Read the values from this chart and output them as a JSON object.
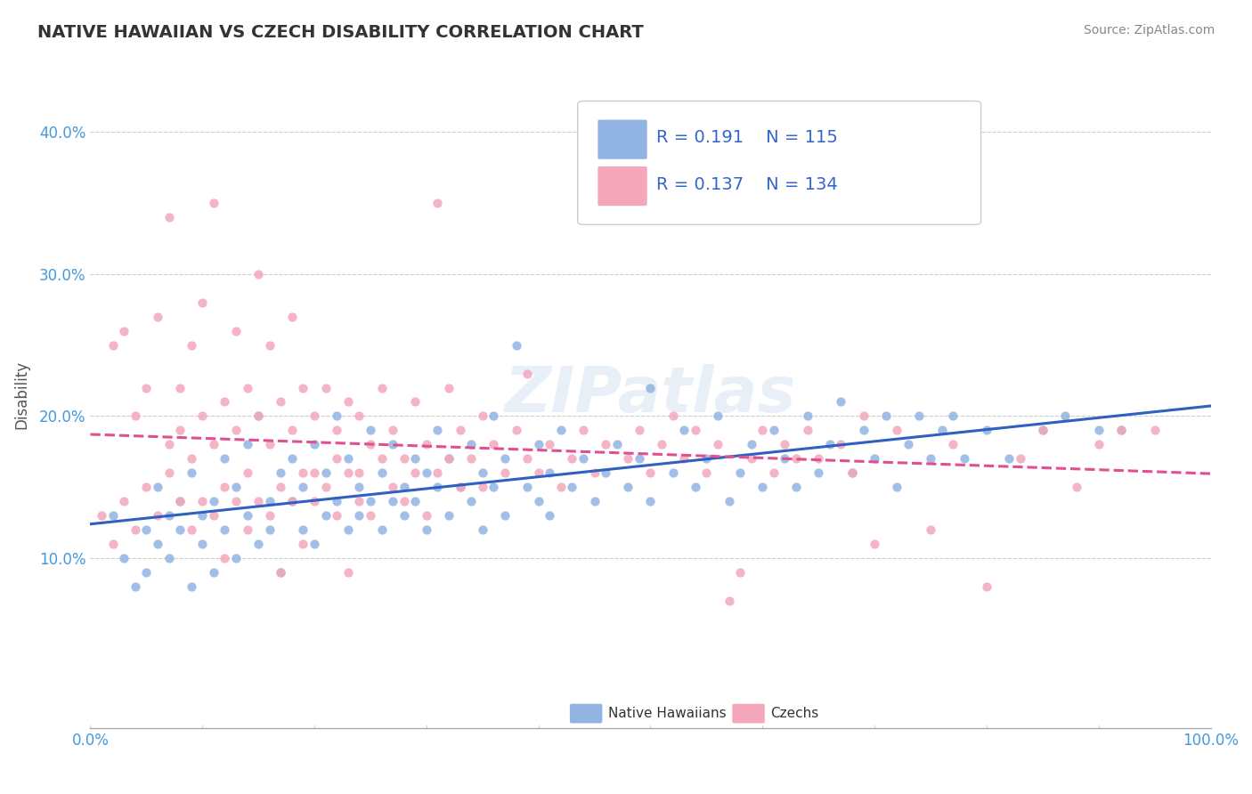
{
  "title": "NATIVE HAWAIIAN VS CZECH DISABILITY CORRELATION CHART",
  "source": "Source: ZipAtlas.com",
  "ylabel": "Disability",
  "xlim": [
    0.0,
    1.0
  ],
  "ylim": [
    -0.02,
    0.45
  ],
  "yticks": [
    0.0,
    0.1,
    0.2,
    0.3,
    0.4
  ],
  "ytick_labels": [
    "",
    "10.0%",
    "20.0%",
    "30.0%",
    "40.0%"
  ],
  "xtick_labels": [
    "0.0%",
    "100.0%"
  ],
  "blue_color": "#92b4e3",
  "pink_color": "#f4a7bb",
  "blue_line_color": "#3060c0",
  "pink_line_color": "#e05090",
  "tick_color": "#4499dd",
  "legend_text_color": "#3366cc",
  "legend_blue_r": "0.191",
  "legend_blue_n": "115",
  "legend_pink_r": "0.137",
  "legend_pink_n": "134",
  "watermark": "ZIPatlas",
  "watermark_color": "#ccddee",
  "blue_scatter": [
    [
      0.02,
      0.13
    ],
    [
      0.03,
      0.1
    ],
    [
      0.04,
      0.08
    ],
    [
      0.05,
      0.12
    ],
    [
      0.05,
      0.09
    ],
    [
      0.06,
      0.11
    ],
    [
      0.06,
      0.15
    ],
    [
      0.07,
      0.13
    ],
    [
      0.07,
      0.1
    ],
    [
      0.08,
      0.14
    ],
    [
      0.08,
      0.12
    ],
    [
      0.09,
      0.08
    ],
    [
      0.09,
      0.16
    ],
    [
      0.1,
      0.13
    ],
    [
      0.1,
      0.11
    ],
    [
      0.11,
      0.14
    ],
    [
      0.11,
      0.09
    ],
    [
      0.12,
      0.17
    ],
    [
      0.12,
      0.12
    ],
    [
      0.13,
      0.1
    ],
    [
      0.13,
      0.15
    ],
    [
      0.14,
      0.18
    ],
    [
      0.14,
      0.13
    ],
    [
      0.15,
      0.11
    ],
    [
      0.15,
      0.2
    ],
    [
      0.16,
      0.14
    ],
    [
      0.16,
      0.12
    ],
    [
      0.17,
      0.16
    ],
    [
      0.17,
      0.09
    ],
    [
      0.18,
      0.17
    ],
    [
      0.18,
      0.14
    ],
    [
      0.19,
      0.12
    ],
    [
      0.19,
      0.15
    ],
    [
      0.2,
      0.18
    ],
    [
      0.2,
      0.11
    ],
    [
      0.21,
      0.16
    ],
    [
      0.21,
      0.13
    ],
    [
      0.22,
      0.2
    ],
    [
      0.22,
      0.14
    ],
    [
      0.23,
      0.12
    ],
    [
      0.23,
      0.17
    ],
    [
      0.24,
      0.15
    ],
    [
      0.24,
      0.13
    ],
    [
      0.25,
      0.19
    ],
    [
      0.25,
      0.14
    ],
    [
      0.26,
      0.12
    ],
    [
      0.26,
      0.16
    ],
    [
      0.27,
      0.14
    ],
    [
      0.27,
      0.18
    ],
    [
      0.28,
      0.15
    ],
    [
      0.28,
      0.13
    ],
    [
      0.29,
      0.17
    ],
    [
      0.29,
      0.14
    ],
    [
      0.3,
      0.16
    ],
    [
      0.3,
      0.12
    ],
    [
      0.31,
      0.19
    ],
    [
      0.31,
      0.15
    ],
    [
      0.32,
      0.13
    ],
    [
      0.32,
      0.17
    ],
    [
      0.33,
      0.15
    ],
    [
      0.34,
      0.18
    ],
    [
      0.34,
      0.14
    ],
    [
      0.35,
      0.16
    ],
    [
      0.35,
      0.12
    ],
    [
      0.36,
      0.2
    ],
    [
      0.36,
      0.15
    ],
    [
      0.37,
      0.13
    ],
    [
      0.37,
      0.17
    ],
    [
      0.38,
      0.25
    ],
    [
      0.39,
      0.15
    ],
    [
      0.4,
      0.18
    ],
    [
      0.4,
      0.14
    ],
    [
      0.41,
      0.16
    ],
    [
      0.41,
      0.13
    ],
    [
      0.42,
      0.19
    ],
    [
      0.43,
      0.15
    ],
    [
      0.44,
      0.17
    ],
    [
      0.45,
      0.14
    ],
    [
      0.46,
      0.16
    ],
    [
      0.47,
      0.18
    ],
    [
      0.48,
      0.15
    ],
    [
      0.49,
      0.17
    ],
    [
      0.5,
      0.22
    ],
    [
      0.5,
      0.14
    ],
    [
      0.52,
      0.16
    ],
    [
      0.53,
      0.19
    ],
    [
      0.54,
      0.15
    ],
    [
      0.55,
      0.17
    ],
    [
      0.56,
      0.2
    ],
    [
      0.57,
      0.14
    ],
    [
      0.58,
      0.16
    ],
    [
      0.59,
      0.18
    ],
    [
      0.6,
      0.15
    ],
    [
      0.61,
      0.19
    ],
    [
      0.62,
      0.17
    ],
    [
      0.63,
      0.15
    ],
    [
      0.64,
      0.2
    ],
    [
      0.65,
      0.16
    ],
    [
      0.66,
      0.18
    ],
    [
      0.67,
      0.21
    ],
    [
      0.68,
      0.16
    ],
    [
      0.69,
      0.19
    ],
    [
      0.7,
      0.17
    ],
    [
      0.71,
      0.2
    ],
    [
      0.72,
      0.15
    ],
    [
      0.73,
      0.18
    ],
    [
      0.74,
      0.2
    ],
    [
      0.75,
      0.17
    ],
    [
      0.76,
      0.19
    ],
    [
      0.77,
      0.2
    ],
    [
      0.78,
      0.17
    ],
    [
      0.8,
      0.19
    ],
    [
      0.82,
      0.17
    ],
    [
      0.85,
      0.19
    ],
    [
      0.87,
      0.2
    ],
    [
      0.9,
      0.19
    ],
    [
      0.92,
      0.19
    ]
  ],
  "pink_scatter": [
    [
      0.01,
      0.13
    ],
    [
      0.02,
      0.11
    ],
    [
      0.02,
      0.25
    ],
    [
      0.03,
      0.14
    ],
    [
      0.03,
      0.26
    ],
    [
      0.04,
      0.12
    ],
    [
      0.04,
      0.2
    ],
    [
      0.05,
      0.15
    ],
    [
      0.05,
      0.22
    ],
    [
      0.06,
      0.13
    ],
    [
      0.06,
      0.27
    ],
    [
      0.07,
      0.16
    ],
    [
      0.07,
      0.18
    ],
    [
      0.07,
      0.34
    ],
    [
      0.08,
      0.14
    ],
    [
      0.08,
      0.19
    ],
    [
      0.08,
      0.22
    ],
    [
      0.09,
      0.12
    ],
    [
      0.09,
      0.17
    ],
    [
      0.09,
      0.25
    ],
    [
      0.1,
      0.14
    ],
    [
      0.1,
      0.2
    ],
    [
      0.1,
      0.28
    ],
    [
      0.11,
      0.13
    ],
    [
      0.11,
      0.18
    ],
    [
      0.11,
      0.35
    ],
    [
      0.12,
      0.15
    ],
    [
      0.12,
      0.21
    ],
    [
      0.12,
      0.1
    ],
    [
      0.13,
      0.14
    ],
    [
      0.13,
      0.19
    ],
    [
      0.13,
      0.26
    ],
    [
      0.14,
      0.16
    ],
    [
      0.14,
      0.22
    ],
    [
      0.14,
      0.12
    ],
    [
      0.15,
      0.14
    ],
    [
      0.15,
      0.2
    ],
    [
      0.15,
      0.3
    ],
    [
      0.16,
      0.13
    ],
    [
      0.16,
      0.18
    ],
    [
      0.16,
      0.25
    ],
    [
      0.17,
      0.15
    ],
    [
      0.17,
      0.21
    ],
    [
      0.17,
      0.09
    ],
    [
      0.18,
      0.14
    ],
    [
      0.18,
      0.19
    ],
    [
      0.18,
      0.27
    ],
    [
      0.19,
      0.16
    ],
    [
      0.19,
      0.22
    ],
    [
      0.19,
      0.11
    ],
    [
      0.2,
      0.14
    ],
    [
      0.2,
      0.2
    ],
    [
      0.2,
      0.16
    ],
    [
      0.21,
      0.15
    ],
    [
      0.21,
      0.22
    ],
    [
      0.22,
      0.17
    ],
    [
      0.22,
      0.19
    ],
    [
      0.22,
      0.13
    ],
    [
      0.23,
      0.16
    ],
    [
      0.23,
      0.21
    ],
    [
      0.23,
      0.09
    ],
    [
      0.24,
      0.14
    ],
    [
      0.24,
      0.2
    ],
    [
      0.24,
      0.16
    ],
    [
      0.25,
      0.18
    ],
    [
      0.25,
      0.13
    ],
    [
      0.26,
      0.17
    ],
    [
      0.26,
      0.22
    ],
    [
      0.27,
      0.15
    ],
    [
      0.27,
      0.19
    ],
    [
      0.28,
      0.17
    ],
    [
      0.28,
      0.14
    ],
    [
      0.29,
      0.16
    ],
    [
      0.29,
      0.21
    ],
    [
      0.3,
      0.18
    ],
    [
      0.3,
      0.13
    ],
    [
      0.31,
      0.16
    ],
    [
      0.31,
      0.35
    ],
    [
      0.32,
      0.17
    ],
    [
      0.32,
      0.22
    ],
    [
      0.33,
      0.15
    ],
    [
      0.33,
      0.19
    ],
    [
      0.34,
      0.17
    ],
    [
      0.35,
      0.15
    ],
    [
      0.35,
      0.2
    ],
    [
      0.36,
      0.18
    ],
    [
      0.37,
      0.16
    ],
    [
      0.38,
      0.19
    ],
    [
      0.39,
      0.17
    ],
    [
      0.39,
      0.23
    ],
    [
      0.4,
      0.16
    ],
    [
      0.41,
      0.18
    ],
    [
      0.42,
      0.15
    ],
    [
      0.43,
      0.17
    ],
    [
      0.44,
      0.19
    ],
    [
      0.45,
      0.16
    ],
    [
      0.46,
      0.18
    ],
    [
      0.47,
      0.35
    ],
    [
      0.48,
      0.17
    ],
    [
      0.49,
      0.19
    ],
    [
      0.5,
      0.16
    ],
    [
      0.51,
      0.18
    ],
    [
      0.52,
      0.2
    ],
    [
      0.53,
      0.17
    ],
    [
      0.54,
      0.19
    ],
    [
      0.55,
      0.16
    ],
    [
      0.56,
      0.18
    ],
    [
      0.57,
      0.07
    ],
    [
      0.58,
      0.09
    ],
    [
      0.59,
      0.17
    ],
    [
      0.6,
      0.19
    ],
    [
      0.61,
      0.16
    ],
    [
      0.62,
      0.18
    ],
    [
      0.63,
      0.17
    ],
    [
      0.64,
      0.19
    ],
    [
      0.65,
      0.17
    ],
    [
      0.67,
      0.18
    ],
    [
      0.68,
      0.16
    ],
    [
      0.69,
      0.2
    ],
    [
      0.7,
      0.11
    ],
    [
      0.72,
      0.19
    ],
    [
      0.75,
      0.12
    ],
    [
      0.77,
      0.18
    ],
    [
      0.8,
      0.08
    ],
    [
      0.83,
      0.17
    ],
    [
      0.85,
      0.19
    ],
    [
      0.88,
      0.15
    ],
    [
      0.9,
      0.18
    ],
    [
      0.92,
      0.19
    ],
    [
      0.95,
      0.19
    ]
  ]
}
